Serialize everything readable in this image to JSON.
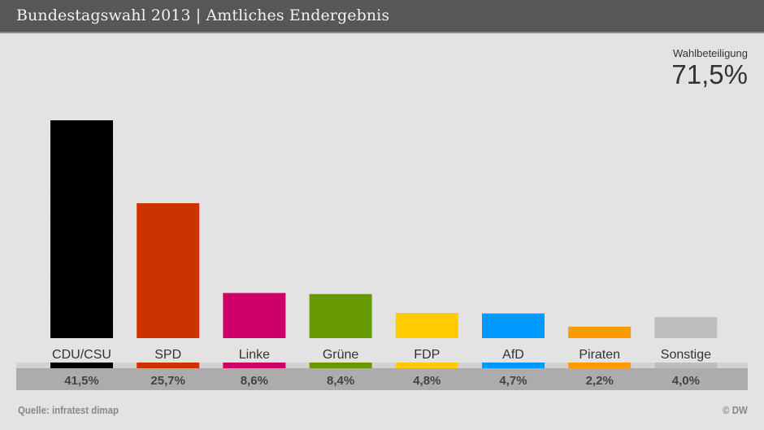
{
  "header": {
    "title": "Bundestagswahl 2013 | Amtliches Endergebnis"
  },
  "turnout": {
    "label": "Wahlbeteiligung",
    "value": "71,5%"
  },
  "footer": {
    "source": "Quelle: infratest dimap",
    "copyright": "© DW"
  },
  "chart_data": {
    "type": "bar",
    "title": "Bundestagswahl 2013 | Amtliches Endergebnis",
    "xlabel": "",
    "ylabel": "",
    "ylim": [
      0,
      41.5
    ],
    "grid": false,
    "categories": [
      "CDU/CSU",
      "SPD",
      "Linke",
      "Grüne",
      "FDP",
      "AfD",
      "Piraten",
      "Sonstige"
    ],
    "values": [
      41.5,
      25.7,
      8.6,
      8.4,
      4.8,
      4.7,
      2.2,
      4.0
    ],
    "value_labels": [
      "41,5%",
      "25,7%",
      "8,6%",
      "8,4%",
      "4,8%",
      "4,7%",
      "2,2%",
      "4,0%"
    ],
    "colors": [
      "#000000",
      "#cc3300",
      "#cc0066",
      "#669900",
      "#ffcc00",
      "#0099ff",
      "#ff9900",
      "#bebebe"
    ],
    "unit": "%"
  }
}
